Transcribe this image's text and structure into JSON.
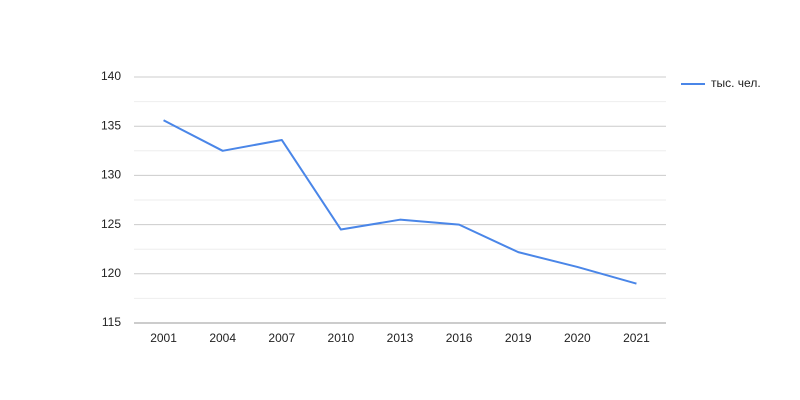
{
  "chart_data": {
    "type": "line",
    "categories": [
      "2001",
      "2004",
      "2007",
      "2010",
      "2013",
      "2016",
      "2019",
      "2020",
      "2021"
    ],
    "series": [
      {
        "name": "тыс. чел.",
        "color": "#4a86e8",
        "values": [
          135.6,
          132.5,
          133.6,
          124.5,
          125.5,
          125.0,
          122.2,
          120.7,
          119.0
        ]
      }
    ],
    "ylim": [
      115,
      140
    ],
    "yticks": [
      115,
      120,
      125,
      130,
      135,
      140
    ],
    "minor_yticks": [
      117.5,
      122.5,
      127.5,
      132.5,
      137.5
    ],
    "grid": true,
    "legend": "right"
  }
}
